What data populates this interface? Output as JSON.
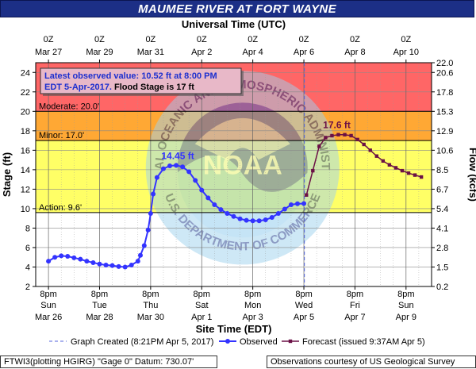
{
  "title": "MAUMEE RIVER AT FORT WAYNE",
  "chart_data": {
    "type": "line",
    "top_axis_title": "Universal Time (UTC)",
    "top_ticks": [
      {
        "day": 0,
        "line1": "0Z",
        "line2": "Mar 27"
      },
      {
        "day": 2,
        "line1": "0Z",
        "line2": "Mar 29"
      },
      {
        "day": 4,
        "line1": "0Z",
        "line2": "Mar 31"
      },
      {
        "day": 6,
        "line1": "0Z",
        "line2": "Apr  2"
      },
      {
        "day": 8,
        "line1": "0Z",
        "line2": "Apr  4"
      },
      {
        "day": 10,
        "line1": "0Z",
        "line2": "Apr  6"
      },
      {
        "day": 12,
        "line1": "0Z",
        "line2": "Apr  8"
      },
      {
        "day": 14,
        "line1": "0Z",
        "line2": "Apr 10"
      }
    ],
    "bottom_axis_title": "Site Time (EDT)",
    "bottom_ticks": [
      {
        "day": 0,
        "line1": "8pm",
        "line2": "Sun",
        "line3": "Mar 26"
      },
      {
        "day": 2,
        "line1": "8pm",
        "line2": "Tue",
        "line3": "Mar 28"
      },
      {
        "day": 4,
        "line1": "8pm",
        "line2": "Thu",
        "line3": "Mar 30"
      },
      {
        "day": 6,
        "line1": "8pm",
        "line2": "Sat",
        "line3": "Apr 1"
      },
      {
        "day": 8,
        "line1": "8pm",
        "line2": "Mon",
        "line3": "Apr 3"
      },
      {
        "day": 10,
        "line1": "8pm",
        "line2": "Wed",
        "line3": "Apr 5"
      },
      {
        "day": 12,
        "line1": "8pm",
        "line2": "Fri",
        "line3": "Apr 7"
      },
      {
        "day": 14,
        "line1": "8pm",
        "line2": "Sun",
        "line3": "Apr 9"
      }
    ],
    "x_range_days": [
      -0.5,
      15
    ],
    "y_left_label": "Stage (ft)",
    "y_left_range": [
      2,
      25
    ],
    "y_left_ticks": [
      2,
      4,
      6,
      8,
      10,
      12,
      14,
      16,
      18,
      20,
      22,
      24
    ],
    "y_right_label": "Flow (kcfs)",
    "y_right_ticks": [
      {
        "stage": 2,
        "label": "0.2"
      },
      {
        "stage": 4,
        "label": "1.5"
      },
      {
        "stage": 6,
        "label": "2.8"
      },
      {
        "stage": 8,
        "label": "4.1"
      },
      {
        "stage": 10,
        "label": "5.4"
      },
      {
        "stage": 12,
        "label": "6.7"
      },
      {
        "stage": 14,
        "label": "8.5"
      },
      {
        "stage": 16,
        "label": "10.6"
      },
      {
        "stage": 18,
        "label": "12.9"
      },
      {
        "stage": 20,
        "label": "15.3"
      },
      {
        "stage": 22,
        "label": "17.8"
      },
      {
        "stage": 24,
        "label": "20.6"
      },
      {
        "stage": 25,
        "label": "22.0"
      }
    ],
    "flood_categories": [
      {
        "name": "Action",
        "label": "Action: 9.6'",
        "from": 2,
        "to": 9.6,
        "color": "#ffffff"
      },
      {
        "name": "Action band",
        "label": "",
        "from": 9.6,
        "to": 17.0,
        "color": "#ffff66"
      },
      {
        "name": "Minor",
        "label": "Minor: 17.0'",
        "from": 17.0,
        "to": 20.0,
        "color": "#ffa834"
      },
      {
        "name": "Moderate",
        "label": "Moderate: 20.0'",
        "from": 20.0,
        "to": 25,
        "color": "#ff6666"
      }
    ],
    "info_box": {
      "line1": "Latest observed value: 10.52 ft at 8:00 PM",
      "line2a": "EDT 5-Apr-2017.",
      "line2b": "Flood Stage is 17 ft"
    },
    "graph_created_day": 10.02,
    "observed": {
      "name": "Observed",
      "color": "#3333ff",
      "peak_label": "14.45 ft",
      "points": [
        [
          0.0,
          4.6
        ],
        [
          0.25,
          5.0
        ],
        [
          0.5,
          5.15
        ],
        [
          0.75,
          5.1
        ],
        [
          1.0,
          4.95
        ],
        [
          1.25,
          4.8
        ],
        [
          1.5,
          4.6
        ],
        [
          1.75,
          4.45
        ],
        [
          2.0,
          4.3
        ],
        [
          2.25,
          4.2
        ],
        [
          2.5,
          4.15
        ],
        [
          2.75,
          4.05
        ],
        [
          3.0,
          4.0
        ],
        [
          3.25,
          4.2
        ],
        [
          3.5,
          4.6
        ],
        [
          3.6,
          5.2
        ],
        [
          3.75,
          6.2
        ],
        [
          3.9,
          7.8
        ],
        [
          4.0,
          9.5
        ],
        [
          4.1,
          11.5
        ],
        [
          4.25,
          13.2
        ],
        [
          4.5,
          14.1
        ],
        [
          4.75,
          14.4
        ],
        [
          5.0,
          14.45
        ],
        [
          5.25,
          14.3
        ],
        [
          5.5,
          13.8
        ],
        [
          5.75,
          12.9
        ],
        [
          6.0,
          11.9
        ],
        [
          6.25,
          11.1
        ],
        [
          6.5,
          10.4
        ],
        [
          6.75,
          9.9
        ],
        [
          7.0,
          9.5
        ],
        [
          7.25,
          9.2
        ],
        [
          7.5,
          8.95
        ],
        [
          7.75,
          8.8
        ],
        [
          8.0,
          8.75
        ],
        [
          8.25,
          8.75
        ],
        [
          8.5,
          8.85
        ],
        [
          8.75,
          9.1
        ],
        [
          9.0,
          9.5
        ],
        [
          9.25,
          9.95
        ],
        [
          9.5,
          10.4
        ],
        [
          9.75,
          10.5
        ],
        [
          10.0,
          10.52
        ]
      ]
    },
    "forecast": {
      "name": "Forecast (issued 9:37AM Apr 5)",
      "color": "#6b1146",
      "peak_label": "17.6 ft",
      "points": [
        [
          10.1,
          11.4
        ],
        [
          10.35,
          13.9
        ],
        [
          10.6,
          16.4
        ],
        [
          10.85,
          17.3
        ],
        [
          11.1,
          17.5
        ],
        [
          11.35,
          17.6
        ],
        [
          11.6,
          17.6
        ],
        [
          11.85,
          17.5
        ],
        [
          12.1,
          17.1
        ],
        [
          12.35,
          16.6
        ],
        [
          12.6,
          16.0
        ],
        [
          12.85,
          15.4
        ],
        [
          13.1,
          14.9
        ],
        [
          13.35,
          14.5
        ],
        [
          13.6,
          14.2
        ],
        [
          13.85,
          13.9
        ],
        [
          14.1,
          13.65
        ],
        [
          14.35,
          13.45
        ],
        [
          14.6,
          13.25
        ]
      ]
    },
    "legend": {
      "graph_created": "Graph Created (8:21PM Apr 5, 2017)",
      "observed": "Observed",
      "forecast": "Forecast (issued 9:37AM Apr 5)"
    },
    "watermark_text": {
      "top": "NATIONAL OCEANIC AND ATMOSPHERIC ADMINISTRATION",
      "bottom": "U.S. DEPARTMENT OF COMMERCE",
      "center": "NOAA"
    }
  },
  "footer": {
    "left": "FTWI3(plotting HGIRG) \"Gage 0\" Datum: 730.07'",
    "right": "Observations courtesy of US Geological Survey"
  }
}
